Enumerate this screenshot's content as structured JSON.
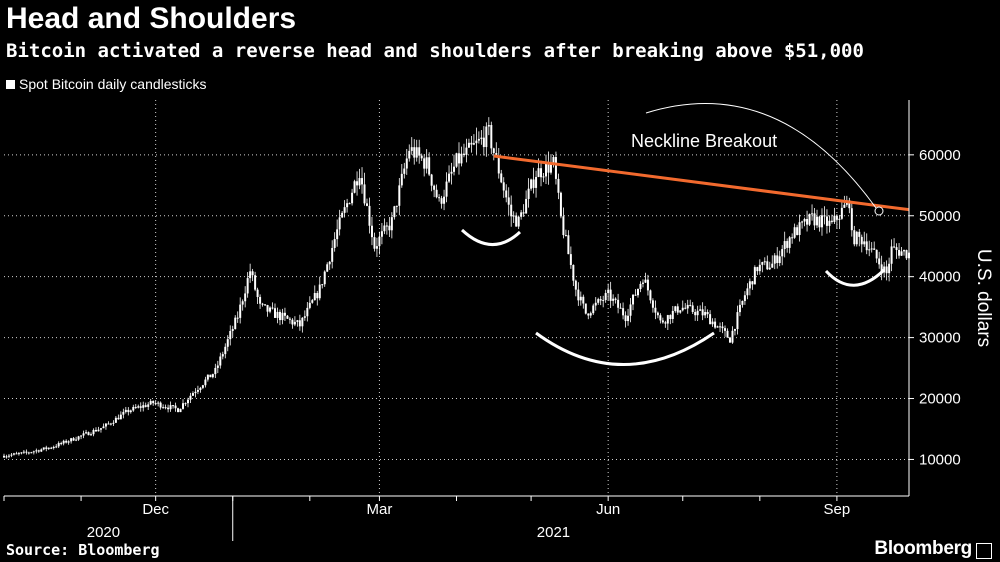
{
  "title": "Head and Shoulders",
  "subtitle": "Bitcoin activated a reverse head and shoulders after breaking above $51,000",
  "legend_label": "Spot Bitcoin daily candlesticks",
  "source": "Source: Bloomberg",
  "brand": "Bloomberg",
  "colors": {
    "background": "#000000",
    "candles": "#ffffff",
    "neckline": "#f26a2e",
    "grid": "#d0d0d0"
  },
  "chart_data": {
    "type": "candlestick",
    "title": "Head and Shoulders",
    "subtitle": "Bitcoin activated a reverse head and shoulders after breaking above $51,000",
    "ylabel": "U.S. dollars",
    "ylim": [
      4000,
      69000
    ],
    "yticks": [
      10000,
      20000,
      30000,
      40000,
      50000,
      60000
    ],
    "ytick_labels": [
      "10000",
      "20000",
      "30000",
      "40000",
      "50000",
      "60000"
    ],
    "xlim": [
      "2020-10-01",
      "2021-09-30"
    ],
    "month_ticks": [
      {
        "date": "2020-12-01",
        "label": "Dec"
      },
      {
        "date": "2021-03-01",
        "label": "Mar"
      },
      {
        "date": "2021-06-01",
        "label": "Jun"
      },
      {
        "date": "2021-09-01",
        "label": "Sep"
      }
    ],
    "year_labels": [
      {
        "date": "2020-11-10",
        "label": "2020"
      },
      {
        "date": "2021-05-10",
        "label": "2021"
      }
    ],
    "year_divider": "2021-01-01",
    "grid": true,
    "legend_position": "top-left",
    "series": [
      {
        "name": "Spot Bitcoin daily candlesticks",
        "close_anchors": [
          [
            "2020-10-01",
            10600
          ],
          [
            "2020-10-10",
            11100
          ],
          [
            "2020-10-20",
            12000
          ],
          [
            "2020-10-31",
            13700
          ],
          [
            "2020-11-10",
            15300
          ],
          [
            "2020-11-20",
            18000
          ],
          [
            "2020-11-30",
            19300
          ],
          [
            "2020-12-10",
            18200
          ],
          [
            "2020-12-16",
            21000
          ],
          [
            "2020-12-25",
            24500
          ],
          [
            "2021-01-03",
            33500
          ],
          [
            "2021-01-08",
            41000
          ],
          [
            "2021-01-12",
            35000
          ],
          [
            "2021-01-20",
            33500
          ],
          [
            "2021-01-28",
            32000
          ],
          [
            "2021-02-05",
            38000
          ],
          [
            "2021-02-12",
            47500
          ],
          [
            "2021-02-21",
            57500
          ],
          [
            "2021-02-27",
            45000
          ],
          [
            "2021-03-06",
            49000
          ],
          [
            "2021-03-13",
            61000
          ],
          [
            "2021-03-20",
            58500
          ],
          [
            "2021-03-25",
            52000
          ],
          [
            "2021-04-01",
            58800
          ],
          [
            "2021-04-14",
            63500
          ],
          [
            "2021-04-23",
            50000
          ],
          [
            "2021-04-26",
            49000
          ],
          [
            "2021-05-03",
            57000
          ],
          [
            "2021-05-10",
            58500
          ],
          [
            "2021-05-13",
            49500
          ],
          [
            "2021-05-19",
            38000
          ],
          [
            "2021-05-23",
            34000
          ],
          [
            "2021-06-01",
            37000
          ],
          [
            "2021-06-08",
            33500
          ],
          [
            "2021-06-15",
            40000
          ],
          [
            "2021-06-22",
            32500
          ],
          [
            "2021-06-30",
            35000
          ],
          [
            "2021-07-10",
            33800
          ],
          [
            "2021-07-20",
            29800
          ],
          [
            "2021-07-26",
            37000
          ],
          [
            "2021-07-31",
            41500
          ],
          [
            "2021-08-06",
            42000
          ],
          [
            "2021-08-14",
            47000
          ],
          [
            "2021-08-22",
            49500
          ],
          [
            "2021-08-30",
            48500
          ],
          [
            "2021-09-06",
            52500
          ],
          [
            "2021-09-07",
            46500
          ],
          [
            "2021-09-12",
            46000
          ],
          [
            "2021-09-21",
            40500
          ],
          [
            "2021-09-23",
            44500
          ],
          [
            "2021-09-30",
            43800
          ]
        ]
      }
    ],
    "neckline": {
      "from": [
        "2021-04-16",
        59800
      ],
      "to": [
        "2021-09-30",
        51000
      ]
    },
    "annotations": [
      {
        "text": "Neckline Breakout"
      }
    ]
  }
}
